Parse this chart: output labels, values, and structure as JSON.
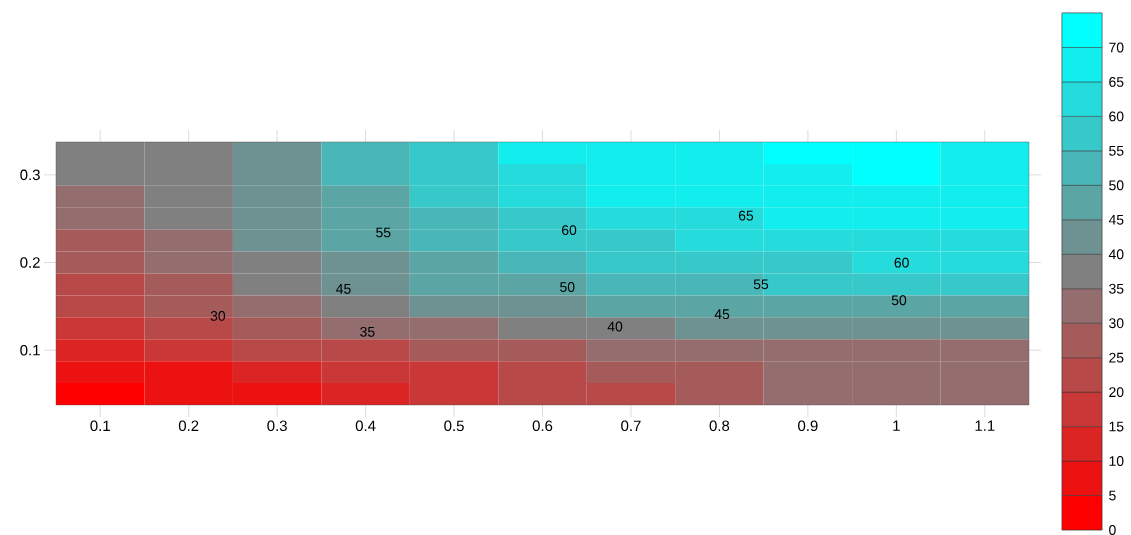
{
  "chart_data": {
    "type": "heatmap",
    "categories": [
      "0.1",
      "0.2",
      "0.3",
      "0.4",
      "0.5",
      "0.6",
      "0.7",
      "0.8",
      "0.9",
      "1",
      "1.1"
    ],
    "y_categories": [
      null,
      "0.3",
      null,
      null,
      null,
      "0.2",
      null,
      null,
      null,
      "0.1",
      null,
      null
    ],
    "cells": [
      [
        37,
        38,
        44,
        50,
        57,
        65,
        67,
        68,
        70,
        71,
        68
      ],
      [
        36,
        38,
        44,
        50,
        56,
        63,
        67,
        68,
        69,
        70,
        68
      ],
      [
        34,
        37,
        42,
        49,
        56,
        61,
        65,
        67,
        67,
        68,
        68
      ],
      [
        32,
        36,
        41,
        47,
        53,
        58,
        62,
        64,
        66,
        66,
        66
      ],
      [
        29,
        34,
        40,
        46,
        51,
        56,
        59,
        61,
        63,
        63,
        64
      ],
      [
        27,
        32,
        38,
        44,
        48,
        53,
        56,
        58,
        59,
        60,
        60
      ],
      [
        24,
        29,
        35,
        41,
        45,
        48,
        51,
        54,
        55,
        56,
        57
      ],
      [
        20,
        26,
        31,
        36,
        40,
        42,
        45,
        46,
        47,
        48,
        49
      ],
      [
        15,
        20,
        25,
        30,
        34,
        36,
        38,
        40,
        40,
        40,
        40
      ],
      [
        12,
        17,
        20,
        24,
        26,
        28,
        30,
        32,
        33,
        34,
        34
      ],
      [
        6,
        9,
        12,
        15,
        18,
        22,
        26,
        27,
        31,
        32,
        32
      ],
      [
        3,
        7,
        9,
        12,
        17,
        22,
        24,
        26,
        31,
        31,
        31
      ]
    ],
    "colors": [
      "#ff0000",
      "#ec1212",
      "#db2525",
      "#c93737",
      "#b74949",
      "#a65b5b",
      "#946e6e",
      "#808080",
      "#6e9292",
      "#5ba5a5",
      "#49b7b7",
      "#37c9c9",
      "#25dbdb",
      "#12eded",
      "#00ffff"
    ],
    "clim": [
      0,
      75
    ],
    "cticks": [
      0,
      5,
      10,
      15,
      20,
      25,
      30,
      35,
      40,
      45,
      50,
      55,
      60,
      65,
      70
    ],
    "annotations": [
      "55",
      "60",
      "65",
      "60",
      "45",
      "50",
      "55",
      "50",
      "30",
      "35",
      "40",
      "45"
    ]
  }
}
